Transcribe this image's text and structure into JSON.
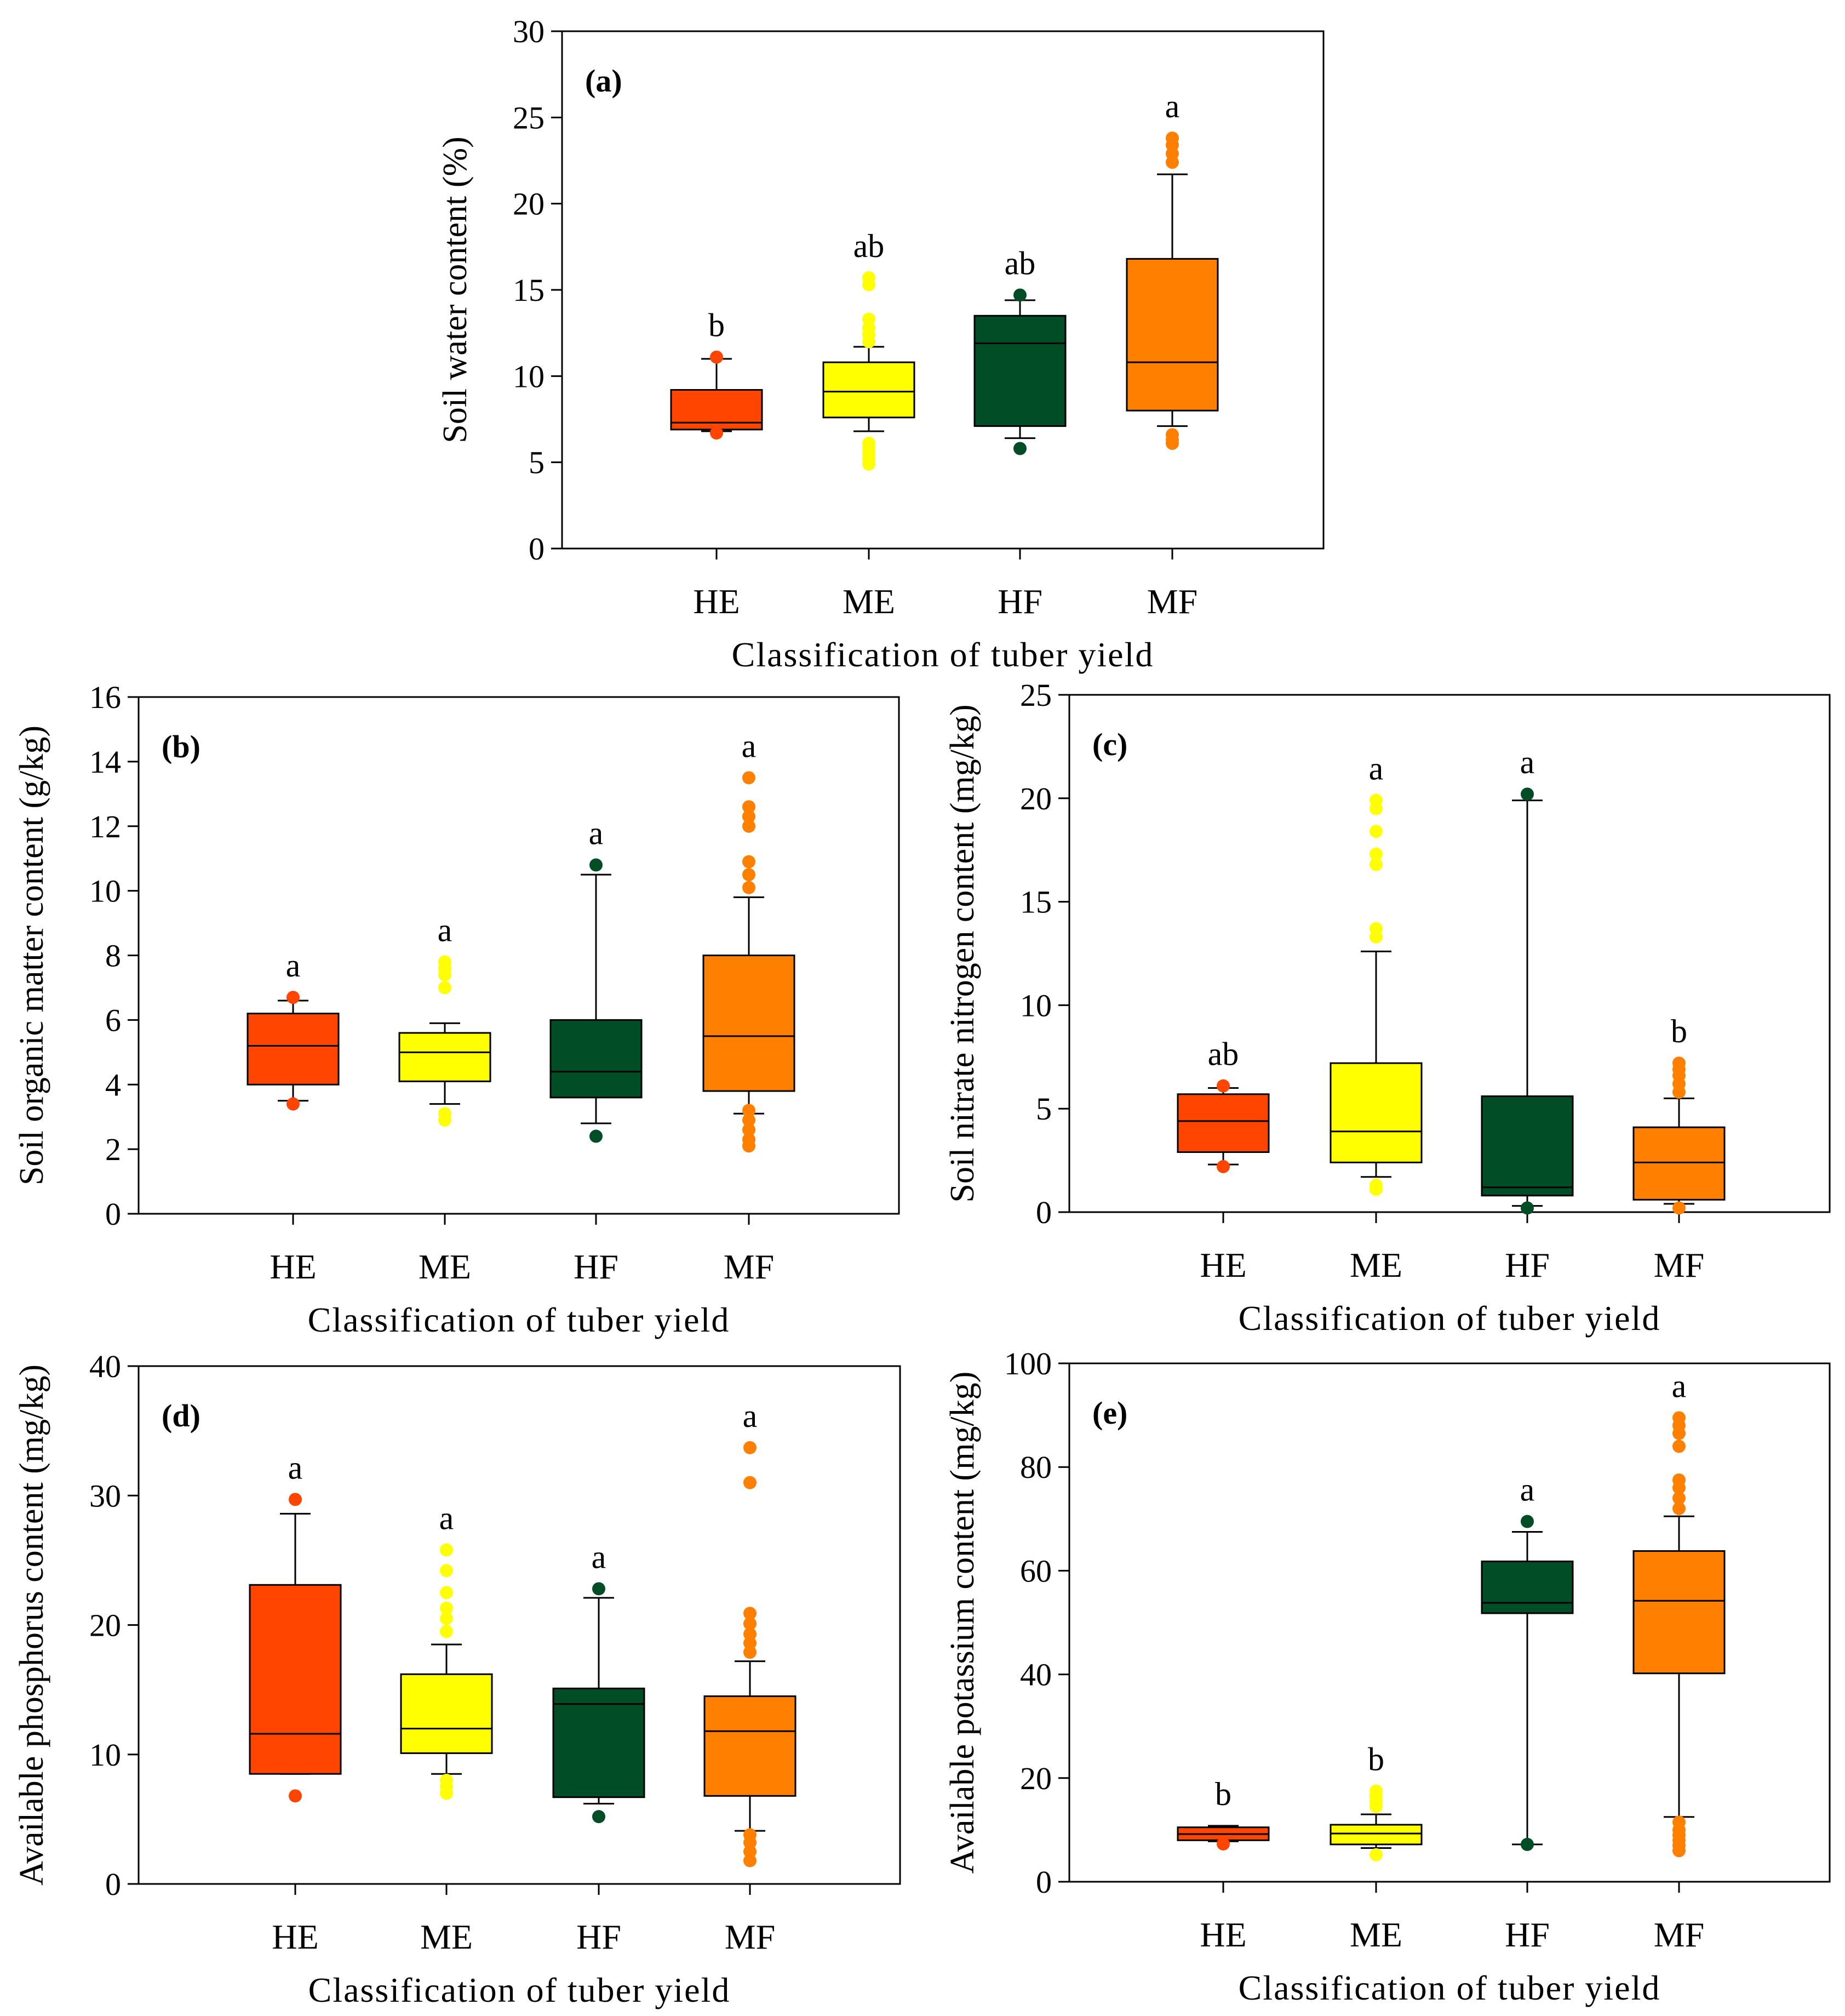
{
  "colors": {
    "HE": "#ff4500",
    "ME": "#ffff00",
    "HF": "#004d26",
    "MF": "#ff7f00",
    "axis": "#000000"
  },
  "chart_data": [
    {
      "id": "a",
      "type": "boxplot",
      "panel_label": "(a)",
      "ylabel": "Soil water content (%)",
      "xlabel": "Classification of tuber yield",
      "ylim": [
        0,
        30
      ],
      "yticks": [
        0,
        5,
        10,
        15,
        20,
        25,
        30
      ],
      "categories": [
        "HE",
        "ME",
        "HF",
        "MF"
      ],
      "boxes": [
        {
          "category": "HE",
          "whisker_low": 6.8,
          "q1": 6.9,
          "median": 7.3,
          "q3": 9.2,
          "whisker_high": 11.0,
          "outliers": [
            6.7,
            11.1
          ],
          "letter": "b"
        },
        {
          "category": "ME",
          "whisker_low": 6.8,
          "q1": 7.6,
          "median": 9.1,
          "q3": 10.8,
          "whisker_high": 11.7,
          "outliers": [
            4.9,
            5.2,
            5.5,
            5.8,
            6.1,
            12.0,
            12.4,
            12.8,
            13.3,
            15.3,
            15.7
          ],
          "letter": "ab"
        },
        {
          "category": "HF",
          "whisker_low": 6.4,
          "q1": 7.1,
          "median": 11.9,
          "q3": 13.5,
          "whisker_high": 14.4,
          "outliers": [
            5.8,
            14.7
          ],
          "letter": "ab"
        },
        {
          "category": "MF",
          "whisker_low": 7.1,
          "q1": 8.0,
          "median": 10.8,
          "q3": 16.8,
          "whisker_high": 21.7,
          "outliers": [
            6.1,
            6.3,
            6.6,
            22.4,
            22.9,
            23.4,
            23.8
          ],
          "letter": "a"
        }
      ]
    },
    {
      "id": "b",
      "type": "boxplot",
      "panel_label": "(b)",
      "ylabel": "Soil organic matter content (g/kg)",
      "xlabel": "Classification of tuber yield",
      "ylim": [
        0,
        16
      ],
      "yticks": [
        0,
        2,
        4,
        6,
        8,
        10,
        12,
        14,
        16
      ],
      "categories": [
        "HE",
        "ME",
        "HF",
        "MF"
      ],
      "boxes": [
        {
          "category": "HE",
          "whisker_low": 3.5,
          "q1": 4.0,
          "median": 5.2,
          "q3": 6.2,
          "whisker_high": 6.6,
          "outliers": [
            3.4,
            6.7
          ],
          "letter": "a"
        },
        {
          "category": "ME",
          "whisker_low": 3.4,
          "q1": 4.1,
          "median": 5.0,
          "q3": 5.6,
          "whisker_high": 5.9,
          "outliers": [
            2.9,
            3.1,
            7.0,
            7.4,
            7.6,
            7.8
          ],
          "letter": "a"
        },
        {
          "category": "HF",
          "whisker_low": 2.8,
          "q1": 3.6,
          "median": 4.4,
          "q3": 6.0,
          "whisker_high": 10.5,
          "outliers": [
            2.4,
            10.8
          ],
          "letter": "a"
        },
        {
          "category": "MF",
          "whisker_low": 3.1,
          "q1": 3.8,
          "median": 5.5,
          "q3": 8.0,
          "whisker_high": 9.8,
          "outliers": [
            2.1,
            2.3,
            2.6,
            2.9,
            3.2,
            10.1,
            10.5,
            10.9,
            12.0,
            12.3,
            12.6,
            13.5
          ],
          "letter": "a"
        }
      ]
    },
    {
      "id": "c",
      "type": "boxplot",
      "panel_label": "(c)",
      "ylabel": "Soil nitrate nitrogen content (mg/kg)",
      "xlabel": "Classification of tuber yield",
      "ylim": [
        0,
        25
      ],
      "yticks": [
        0,
        5,
        10,
        15,
        20,
        25
      ],
      "categories": [
        "HE",
        "ME",
        "HF",
        "MF"
      ],
      "boxes": [
        {
          "category": "HE",
          "whisker_low": 2.3,
          "q1": 2.9,
          "median": 4.4,
          "q3": 5.7,
          "whisker_high": 6.0,
          "outliers": [
            2.2,
            6.1
          ],
          "letter": "ab"
        },
        {
          "category": "ME",
          "whisker_low": 1.7,
          "q1": 2.4,
          "median": 3.9,
          "q3": 7.2,
          "whisker_high": 12.6,
          "outliers": [
            1.1,
            1.3,
            13.3,
            13.7,
            16.8,
            17.3,
            18.4,
            19.5,
            19.9
          ],
          "letter": "a"
        },
        {
          "category": "HF",
          "whisker_low": 0.3,
          "q1": 0.8,
          "median": 1.2,
          "q3": 5.6,
          "whisker_high": 19.9,
          "outliers": [
            0.2,
            20.2
          ],
          "letter": "a"
        },
        {
          "category": "MF",
          "whisker_low": 0.4,
          "q1": 0.6,
          "median": 2.4,
          "q3": 4.1,
          "whisker_high": 5.5,
          "outliers": [
            0.2,
            5.8,
            6.2,
            6.6,
            6.9,
            7.2
          ],
          "letter": "b"
        }
      ]
    },
    {
      "id": "d",
      "type": "boxplot",
      "panel_label": "(d)",
      "ylabel": "Available phosphorus content (mg/kg)",
      "xlabel": "Classification of tuber yield",
      "ylim": [
        0,
        40
      ],
      "yticks": [
        0,
        10,
        20,
        30,
        40
      ],
      "categories": [
        "HE",
        "ME",
        "HF",
        "MF"
      ],
      "boxes": [
        {
          "category": "HE",
          "whisker_low": 8.5,
          "q1": 8.5,
          "median": 11.6,
          "q3": 23.1,
          "whisker_high": 28.6,
          "outliers": [
            6.8,
            29.7
          ],
          "letter": "a"
        },
        {
          "category": "ME",
          "whisker_low": 8.5,
          "q1": 10.1,
          "median": 12.0,
          "q3": 16.2,
          "whisker_high": 18.5,
          "outliers": [
            7.0,
            7.5,
            8.0,
            19.5,
            20.5,
            21.3,
            22.5,
            24.2,
            25.8
          ],
          "letter": "a"
        },
        {
          "category": "HF",
          "whisker_low": 6.2,
          "q1": 6.7,
          "median": 13.9,
          "q3": 15.1,
          "whisker_high": 22.1,
          "outliers": [
            5.2,
            22.8
          ],
          "letter": "a"
        },
        {
          "category": "MF",
          "whisker_low": 4.1,
          "q1": 6.8,
          "median": 11.8,
          "q3": 14.5,
          "whisker_high": 17.2,
          "outliers": [
            1.8,
            2.5,
            3.2,
            3.8,
            17.9,
            18.6,
            19.3,
            20.1,
            20.9,
            31.0,
            33.7
          ],
          "letter": "a"
        }
      ]
    },
    {
      "id": "e",
      "type": "boxplot",
      "panel_label": "(e)",
      "ylabel": "Available potassium content (mg/kg)",
      "xlabel": "Classification of tuber yield",
      "ylim": [
        0,
        100
      ],
      "yticks": [
        0,
        20,
        40,
        60,
        80,
        100
      ],
      "categories": [
        "HE",
        "ME",
        "HF",
        "MF"
      ],
      "boxes": [
        {
          "category": "HE",
          "whisker_low": 7.8,
          "q1": 8.0,
          "median": 9.2,
          "q3": 10.5,
          "whisker_high": 10.8,
          "outliers": [
            7.3
          ],
          "letter": "b"
        },
        {
          "category": "ME",
          "whisker_low": 6.5,
          "q1": 7.2,
          "median": 9.3,
          "q3": 11.0,
          "whisker_high": 13.0,
          "outliers": [
            5.2,
            14.5,
            15.5,
            16.5,
            17.5
          ],
          "letter": "b"
        },
        {
          "category": "HF",
          "whisker_low": 7.2,
          "q1": 51.8,
          "median": 53.8,
          "q3": 61.8,
          "whisker_high": 67.5,
          "outliers": [
            7.2,
            69.5
          ],
          "letter": "a"
        },
        {
          "category": "MF",
          "whisker_low": 12.5,
          "q1": 40.2,
          "median": 54.2,
          "q3": 63.8,
          "whisker_high": 70.5,
          "outliers": [
            6.0,
            7.0,
            8.0,
            9.0,
            10.0,
            11.5,
            72.0,
            74.0,
            76.0,
            77.5,
            84.0,
            86.5,
            88.0,
            89.5
          ],
          "letter": "a"
        }
      ]
    }
  ]
}
